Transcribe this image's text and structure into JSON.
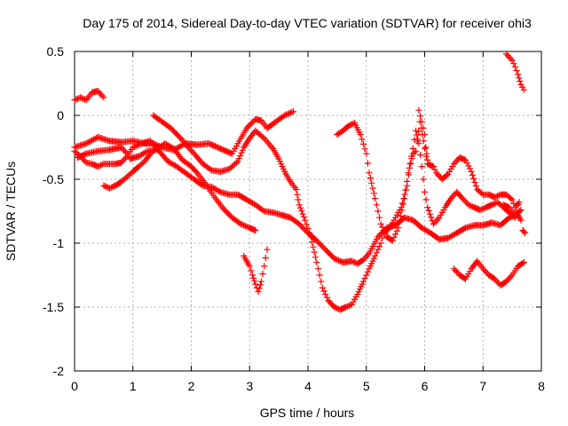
{
  "chart_data": {
    "type": "scatter",
    "title": "Day 175 of 2014, Sidereal Day-to-day VTEC variation (SDTVAR) for receiver ohi3",
    "xlabel": "GPS time / hours",
    "ylabel": "SDTVAR / TECUs",
    "xlim": [
      0,
      8
    ],
    "ylim": [
      -2,
      0.5
    ],
    "xticks": [
      "0",
      "1",
      "2",
      "3",
      "4",
      "5",
      "6",
      "7",
      "8"
    ],
    "yticks": [
      "0.5",
      "0",
      "-0.5",
      "-1",
      "-1.5",
      "-2"
    ],
    "grid": true,
    "marker": "+",
    "color": "#ff0000",
    "series": [
      {
        "name": "s1",
        "points": [
          [
            0.0,
            0.12
          ],
          [
            0.1,
            0.14
          ],
          [
            0.2,
            0.12
          ],
          [
            0.3,
            0.18
          ],
          [
            0.4,
            0.19
          ],
          [
            0.5,
            0.14
          ]
        ]
      },
      {
        "name": "s2",
        "points": [
          [
            0.0,
            -0.25
          ],
          [
            0.2,
            -0.22
          ],
          [
            0.4,
            -0.17
          ],
          [
            0.6,
            -0.2
          ],
          [
            0.8,
            -0.21
          ],
          [
            1.0,
            -0.2
          ],
          [
            1.2,
            -0.22
          ],
          [
            1.35,
            -0.22
          ],
          [
            1.5,
            -0.25
          ],
          [
            1.7,
            -0.27
          ],
          [
            1.9,
            -0.22
          ],
          [
            2.1,
            -0.23
          ],
          [
            2.3,
            -0.22
          ],
          [
            2.5,
            -0.26
          ],
          [
            2.7,
            -0.3
          ],
          [
            2.8,
            -0.22
          ],
          [
            2.95,
            -0.1
          ],
          [
            3.1,
            -0.03
          ],
          [
            3.2,
            -0.04
          ],
          [
            3.3,
            -0.1
          ],
          [
            3.45,
            -0.05
          ],
          [
            3.6,
            0.0
          ],
          [
            3.75,
            0.03
          ]
        ]
      },
      {
        "name": "s3",
        "points": [
          [
            0.0,
            -0.28
          ],
          [
            0.1,
            -0.32
          ],
          [
            0.2,
            -0.37
          ],
          [
            0.3,
            -0.38
          ],
          [
            0.4,
            -0.4
          ],
          [
            0.5,
            -0.38
          ],
          [
            0.7,
            -0.38
          ],
          [
            0.8,
            -0.37
          ],
          [
            0.9,
            -0.32
          ],
          [
            1.0,
            -0.25
          ],
          [
            1.15,
            -0.22
          ],
          [
            1.3,
            -0.2
          ],
          [
            1.45,
            -0.28
          ],
          [
            1.6,
            -0.36
          ],
          [
            1.75,
            -0.4
          ],
          [
            1.9,
            -0.45
          ],
          [
            2.05,
            -0.5
          ],
          [
            2.2,
            -0.55
          ],
          [
            2.35,
            -0.56
          ],
          [
            2.5,
            -0.6
          ],
          [
            2.65,
            -0.62
          ],
          [
            2.8,
            -0.62
          ],
          [
            2.95,
            -0.66
          ],
          [
            3.1,
            -0.7
          ],
          [
            3.25,
            -0.75
          ],
          [
            3.4,
            -0.76
          ],
          [
            3.55,
            -0.78
          ],
          [
            3.7,
            -0.8
          ],
          [
            3.85,
            -0.85
          ],
          [
            4.0,
            -0.92
          ],
          [
            4.15,
            -0.98
          ],
          [
            4.3,
            -1.05
          ],
          [
            4.45,
            -1.12
          ],
          [
            4.6,
            -1.15
          ],
          [
            4.75,
            -1.14
          ],
          [
            4.85,
            -1.16
          ],
          [
            4.95,
            -1.13
          ],
          [
            5.05,
            -1.08
          ],
          [
            5.2,
            -0.95
          ],
          [
            5.35,
            -0.88
          ],
          [
            5.5,
            -0.86
          ],
          [
            5.65,
            -0.8
          ],
          [
            5.8,
            -0.82
          ],
          [
            5.95,
            -0.88
          ],
          [
            6.1,
            -0.92
          ],
          [
            6.25,
            -0.97
          ],
          [
            6.4,
            -0.96
          ],
          [
            6.55,
            -0.92
          ],
          [
            6.7,
            -0.88
          ],
          [
            6.85,
            -0.86
          ],
          [
            7.0,
            -0.86
          ],
          [
            7.15,
            -0.84
          ],
          [
            7.3,
            -0.86
          ],
          [
            7.45,
            -0.8
          ],
          [
            7.6,
            -0.78
          ],
          [
            7.65,
            -0.82
          ]
        ]
      },
      {
        "name": "s4",
        "points": [
          [
            0.05,
            -0.33
          ],
          [
            0.2,
            -0.3
          ],
          [
            0.4,
            -0.28
          ],
          [
            0.6,
            -0.27
          ],
          [
            0.8,
            -0.25
          ],
          [
            0.9,
            -0.3
          ],
          [
            0.95,
            -0.34
          ],
          [
            1.1,
            -0.32
          ],
          [
            1.25,
            -0.28
          ],
          [
            1.4,
            -0.27
          ],
          [
            1.55,
            -0.22
          ],
          [
            1.7,
            -0.26
          ],
          [
            1.85,
            -0.35
          ],
          [
            2.0,
            -0.4
          ],
          [
            2.1,
            -0.45
          ],
          [
            2.25,
            -0.54
          ],
          [
            2.4,
            -0.64
          ],
          [
            2.55,
            -0.73
          ],
          [
            2.7,
            -0.8
          ],
          [
            2.85,
            -0.85
          ],
          [
            3.0,
            -0.88
          ],
          [
            3.1,
            -0.9
          ]
        ]
      },
      {
        "name": "s5",
        "points": [
          [
            0.5,
            -0.55
          ],
          [
            0.6,
            -0.57
          ],
          [
            0.7,
            -0.55
          ],
          [
            0.8,
            -0.52
          ],
          [
            0.9,
            -0.48
          ],
          [
            1.0,
            -0.44
          ],
          [
            1.1,
            -0.4
          ],
          [
            1.2,
            -0.36
          ],
          [
            1.3,
            -0.3
          ],
          [
            1.4,
            -0.26
          ]
        ]
      },
      {
        "name": "s6",
        "points": [
          [
            1.35,
            0.0
          ],
          [
            1.5,
            -0.05
          ],
          [
            1.65,
            -0.1
          ],
          [
            1.8,
            -0.17
          ],
          [
            1.95,
            -0.25
          ],
          [
            2.05,
            -0.3
          ],
          [
            2.2,
            -0.38
          ],
          [
            2.35,
            -0.43
          ],
          [
            2.5,
            -0.44
          ],
          [
            2.65,
            -0.42
          ],
          [
            2.8,
            -0.36
          ],
          [
            2.9,
            -0.25
          ],
          [
            3.0,
            -0.18
          ],
          [
            3.1,
            -0.12
          ],
          [
            3.25,
            -0.18
          ],
          [
            3.4,
            -0.26
          ],
          [
            3.5,
            -0.34
          ],
          [
            3.6,
            -0.44
          ],
          [
            3.7,
            -0.52
          ],
          [
            3.8,
            -0.58
          ],
          [
            3.85,
            -0.7
          ],
          [
            3.95,
            -0.82
          ],
          [
            4.05,
            -0.95
          ],
          [
            4.15,
            -1.15
          ],
          [
            4.25,
            -1.35
          ],
          [
            4.35,
            -1.45
          ],
          [
            4.45,
            -1.5
          ],
          [
            4.55,
            -1.52
          ],
          [
            4.65,
            -1.5
          ],
          [
            4.75,
            -1.48
          ],
          [
            4.85,
            -1.4
          ],
          [
            4.95,
            -1.3
          ],
          [
            5.05,
            -1.2
          ],
          [
            5.15,
            -1.1
          ],
          [
            5.25,
            -1.0
          ],
          [
            5.3,
            -0.92
          ],
          [
            5.4,
            -0.88
          ],
          [
            5.5,
            -0.8
          ],
          [
            5.6,
            -0.72
          ],
          [
            5.7,
            -0.55
          ],
          [
            5.75,
            -0.38
          ],
          [
            5.8,
            -0.26
          ],
          [
            5.85,
            -0.12
          ],
          [
            5.9,
            -0.22
          ],
          [
            5.95,
            -0.4
          ],
          [
            6.0,
            -0.6
          ],
          [
            6.05,
            -0.72
          ],
          [
            6.15,
            -0.85
          ],
          [
            6.25,
            -0.8
          ],
          [
            6.35,
            -0.72
          ],
          [
            6.45,
            -0.65
          ],
          [
            6.55,
            -0.6
          ],
          [
            6.65,
            -0.65
          ],
          [
            6.75,
            -0.7
          ],
          [
            6.85,
            -0.72
          ],
          [
            6.95,
            -0.74
          ],
          [
            7.05,
            -0.72
          ],
          [
            7.15,
            -0.7
          ],
          [
            7.25,
            -0.68
          ],
          [
            7.35,
            -0.72
          ],
          [
            7.45,
            -0.76
          ],
          [
            7.55,
            -0.8
          ],
          [
            7.6,
            -0.7
          ]
        ]
      },
      {
        "name": "s7",
        "points": [
          [
            2.9,
            -1.1
          ],
          [
            3.0,
            -1.18
          ],
          [
            3.05,
            -1.25
          ],
          [
            3.1,
            -1.32
          ],
          [
            3.15,
            -1.38
          ],
          [
            3.2,
            -1.3
          ],
          [
            3.25,
            -1.18
          ],
          [
            3.3,
            -1.05
          ]
        ]
      },
      {
        "name": "s8",
        "points": [
          [
            4.5,
            -0.15
          ],
          [
            4.6,
            -0.12
          ],
          [
            4.7,
            -0.08
          ],
          [
            4.8,
            -0.06
          ],
          [
            4.9,
            -0.15
          ],
          [
            5.0,
            -0.3
          ],
          [
            5.05,
            -0.45
          ],
          [
            5.15,
            -0.65
          ],
          [
            5.25,
            -0.85
          ],
          [
            5.35,
            -0.95
          ],
          [
            5.45,
            -0.98
          ],
          [
            5.55,
            -0.88
          ],
          [
            5.65,
            -0.65
          ],
          [
            5.72,
            -0.45
          ],
          [
            5.8,
            -0.3
          ],
          [
            5.85,
            -0.28
          ],
          [
            5.92,
            -0.05
          ],
          [
            5.98,
            -0.2
          ],
          [
            6.05,
            -0.38
          ],
          [
            6.15,
            -0.4
          ],
          [
            6.2,
            -0.45
          ],
          [
            6.3,
            -0.5
          ],
          [
            6.4,
            -0.46
          ],
          [
            6.5,
            -0.38
          ],
          [
            6.6,
            -0.33
          ],
          [
            6.7,
            -0.35
          ],
          [
            6.8,
            -0.44
          ],
          [
            6.9,
            -0.58
          ],
          [
            7.0,
            -0.62
          ],
          [
            7.1,
            -0.62
          ],
          [
            7.2,
            -0.64
          ],
          [
            7.3,
            -0.62
          ],
          [
            7.4,
            -0.62
          ],
          [
            7.5,
            -0.66
          ],
          [
            7.55,
            -0.72
          ],
          [
            7.62,
            -0.68
          ]
        ]
      },
      {
        "name": "s9",
        "points": [
          [
            5.9,
            0.04
          ],
          [
            5.95,
            -0.05
          ],
          [
            6.0,
            -0.15
          ],
          [
            6.02,
            -0.25
          ],
          [
            6.05,
            -0.35
          ]
        ]
      },
      {
        "name": "s10",
        "points": [
          [
            6.5,
            -1.2
          ],
          [
            6.6,
            -1.25
          ],
          [
            6.7,
            -1.28
          ],
          [
            6.8,
            -1.2
          ],
          [
            6.9,
            -1.14
          ],
          [
            7.0,
            -1.2
          ],
          [
            7.1,
            -1.25
          ],
          [
            7.2,
            -1.28
          ],
          [
            7.3,
            -1.33
          ],
          [
            7.4,
            -1.3
          ],
          [
            7.5,
            -1.25
          ],
          [
            7.6,
            -1.18
          ],
          [
            7.7,
            -1.15
          ]
        ]
      },
      {
        "name": "s11",
        "points": [
          [
            7.4,
            0.48
          ],
          [
            7.5,
            0.43
          ],
          [
            7.55,
            0.38
          ],
          [
            7.6,
            0.32
          ],
          [
            7.65,
            0.24
          ],
          [
            7.7,
            0.2
          ]
        ]
      },
      {
        "name": "s12",
        "points": [
          [
            7.35,
            -0.7
          ],
          [
            7.45,
            -0.72
          ],
          [
            7.55,
            -0.78
          ],
          [
            7.65,
            -0.74
          ]
        ]
      },
      {
        "name": "s13",
        "points": [
          [
            7.68,
            -0.9
          ],
          [
            7.72,
            -0.92
          ]
        ]
      }
    ]
  }
}
